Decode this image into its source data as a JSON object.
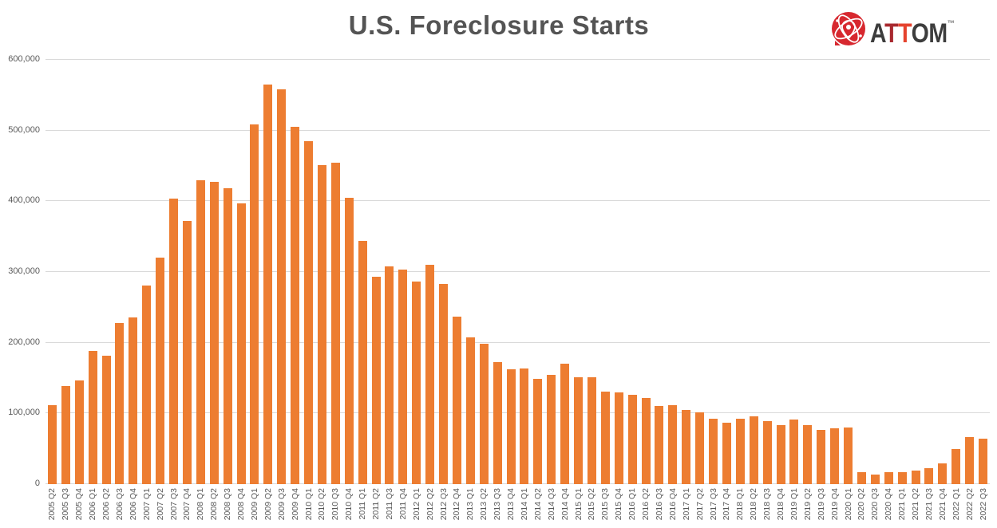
{
  "title": "U.S. Foreclosure Starts",
  "logo": {
    "brand": "ATTOM",
    "trademark": "™",
    "letters": [
      {
        "char": "A",
        "color": "#3d3d3d"
      },
      {
        "char": "T",
        "color": "#a8292f"
      },
      {
        "char": "T",
        "color": "#e5432e"
      },
      {
        "char": "O",
        "color": "#3d3d3d"
      },
      {
        "char": "M",
        "color": "#3d3d3d"
      }
    ],
    "emblem_icon": "attom-globe-pin-icon",
    "emblem_color": "#d7282f"
  },
  "chart_data": {
    "type": "bar",
    "title": "U.S. Foreclosure Starts",
    "xlabel": "",
    "ylabel": "",
    "ylim": [
      0,
      600000
    ],
    "ytick_interval": 100000,
    "ytick_labels": [
      "0",
      "100,000",
      "200,000",
      "300,000",
      "400,000",
      "500,000",
      "600,000"
    ],
    "grid": true,
    "legend": false,
    "bar_color": "#ED7D31",
    "gridline_color": "#d9d9d9",
    "axis_text_color": "#595959",
    "categories": [
      "2005 Q2",
      "2005 Q3",
      "2005 Q4",
      "2006 Q1",
      "2006 Q2",
      "2006 Q3",
      "2006 Q4",
      "2007 Q1",
      "2007 Q2",
      "2007 Q3",
      "2007 Q4",
      "2008 Q1",
      "2008 Q2",
      "2008 Q3",
      "2008 Q4",
      "2009 Q1",
      "2009 Q2",
      "2009 Q3",
      "2009 Q4",
      "2010 Q1",
      "2010 Q2",
      "2010 Q3",
      "2010 Q4",
      "2011 Q1",
      "2011 Q2",
      "2011 Q3",
      "2011 Q4",
      "2012 Q1",
      "2012 Q2",
      "2012 Q3",
      "2012 Q4",
      "2013 Q1",
      "2013 Q2",
      "2013 Q3",
      "2013 Q4",
      "2014 Q1",
      "2014 Q2",
      "2014 Q3",
      "2014 Q4",
      "2015 Q1",
      "2015 Q2",
      "2015 Q3",
      "2015 Q4",
      "2016 Q1",
      "2016 Q2",
      "2016 Q3",
      "2016 Q4",
      "2017 Q1",
      "2017 Q2",
      "2017 Q3",
      "2017 Q4",
      "2018 Q1",
      "2018 Q2",
      "2018 Q3",
      "2018 Q4",
      "2019 Q1",
      "2019 Q2",
      "2019 Q3",
      "2019 Q4",
      "2020 Q1",
      "2020 Q2",
      "2020 Q3",
      "2020 Q4",
      "2021 Q1",
      "2021 Q2",
      "2021 Q3",
      "2021 Q4",
      "2022 Q1",
      "2022 Q2",
      "2022 Q3"
    ],
    "values": [
      112000,
      139000,
      147000,
      188000,
      182000,
      228000,
      236000,
      281000,
      320000,
      404000,
      372000,
      430000,
      428000,
      418000,
      397000,
      509000,
      565000,
      558000,
      505000,
      485000,
      451000,
      455000,
      405000,
      344000,
      293000,
      308000,
      303000,
      286000,
      310000,
      283000,
      237000,
      207000,
      198000,
      173000,
      162000,
      163000,
      149000,
      155000,
      170000,
      151000,
      151000,
      131000,
      130000,
      126000,
      122000,
      110000,
      112000,
      105000,
      102000,
      93000,
      87000,
      92000,
      96000,
      89000,
      84000,
      91000,
      84000,
      77000,
      79000,
      80000,
      17000,
      14000,
      17000,
      17000,
      19000,
      23000,
      29000,
      50000,
      66000,
      64000
    ]
  }
}
